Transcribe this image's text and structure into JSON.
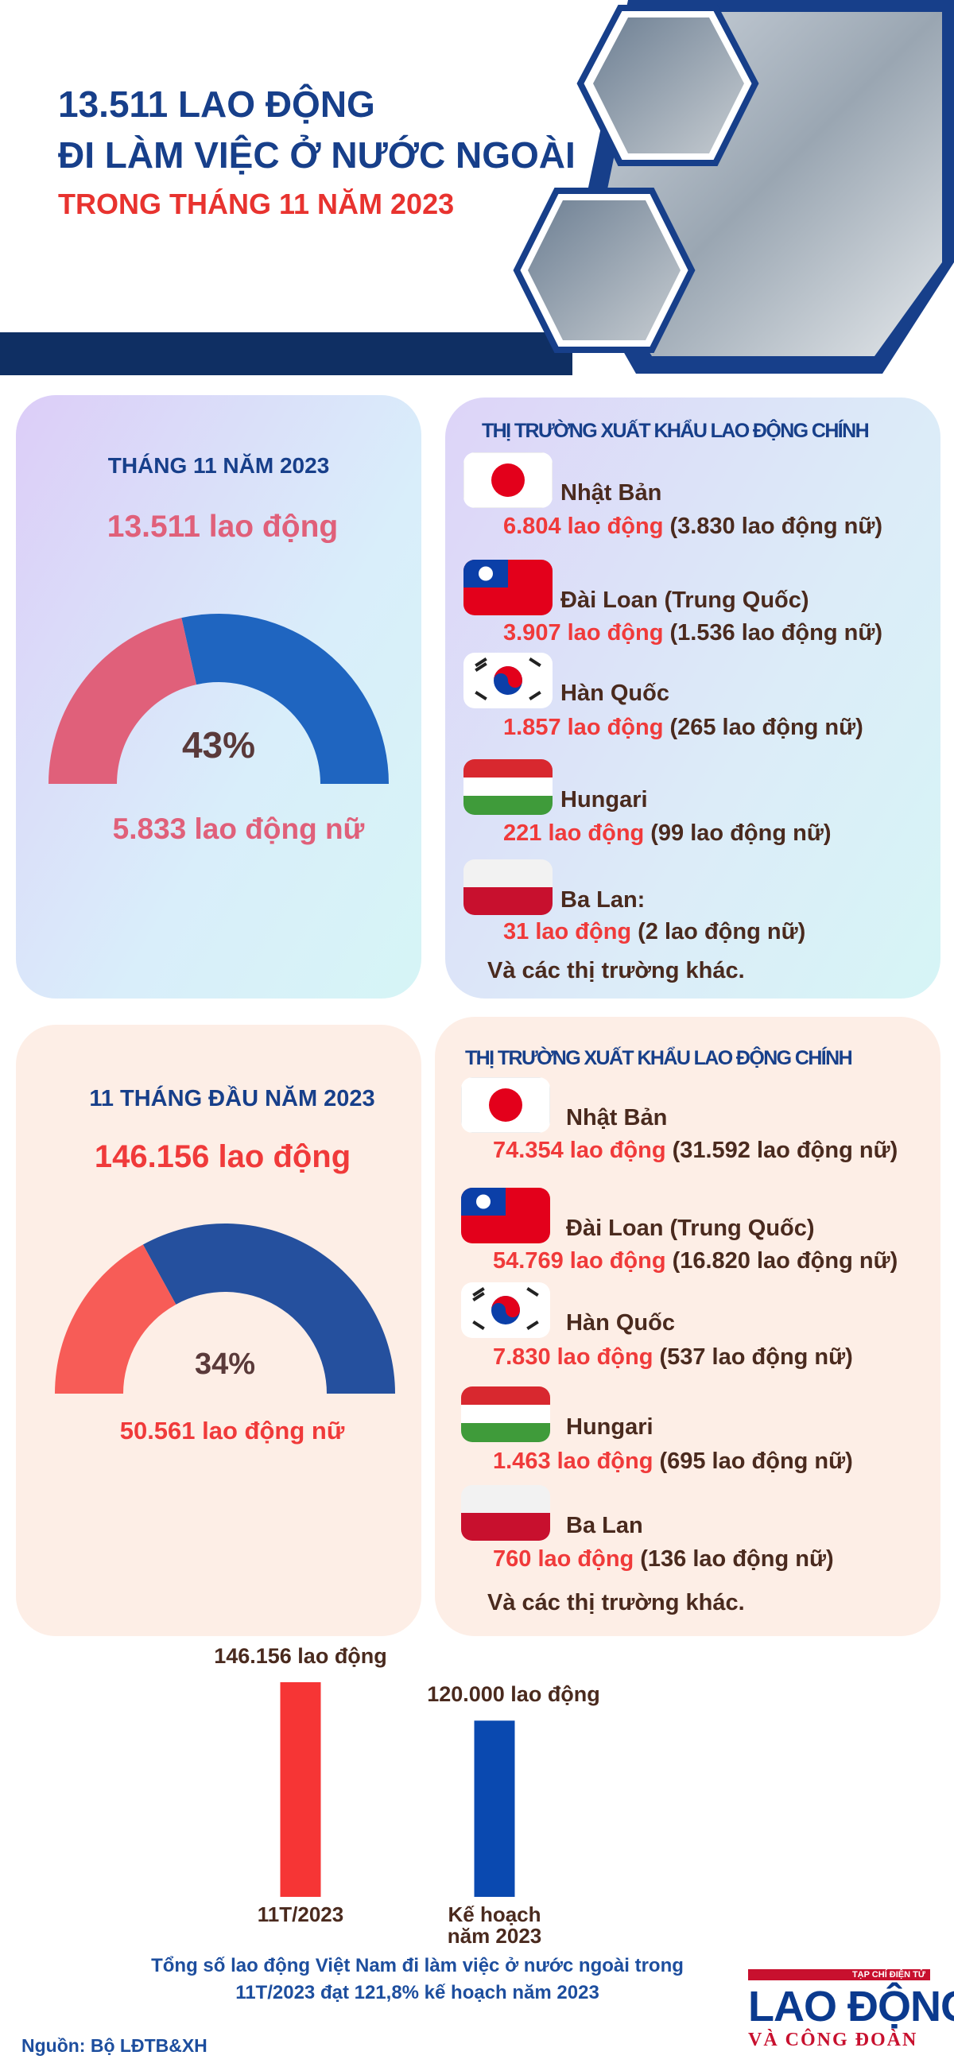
{
  "header": {
    "title_line1": "13.511 LAO ĐỘNG",
    "title_line2": "ĐI LÀM VIỆC Ở NƯỚC NGOÀI",
    "subtitle": "TRONG THÁNG 11 NĂM 2023"
  },
  "panels": [
    {
      "period": "THÁNG 11 NĂM 2023",
      "total": "13.511 lao động",
      "female": "5.833 lao động nữ",
      "markets_title": "THỊ TRƯỜNG XUẤT KHẨU LAO ĐỘNG CHÍNH",
      "markets": [
        {
          "country": "Nhật Bản",
          "workers": "6.804 lao động",
          "female": "(3.830 lao động nữ)"
        },
        {
          "country": "Đài Loan (Trung Quốc)",
          "workers": "3.907 lao động",
          "female": "(1.536 lao động nữ)"
        },
        {
          "country": "Hàn Quốc",
          "workers": "1.857 lao động",
          "female": "(265 lao động nữ)"
        },
        {
          "country": "Hungari",
          "workers": "221 lao động",
          "female": "(99 lao động nữ)"
        },
        {
          "country": "Ba Lan:",
          "workers": "31 lao động",
          "female": "(2 lao động nữ)"
        }
      ],
      "others": "Và các thị trường khác."
    },
    {
      "period": "11 THÁNG ĐẦU NĂM 2023",
      "total": "146.156 lao động",
      "female": "50.561 lao động nữ",
      "markets_title": "THỊ TRƯỜNG XUẤT KHẨU LAO ĐỘNG CHÍNH",
      "markets": [
        {
          "country": "Nhật Bản",
          "workers": "74.354 lao động",
          "female": "(31.592 lao động nữ)"
        },
        {
          "country": "Đài Loan (Trung Quốc)",
          "workers": "54.769 lao động",
          "female": "(16.820 lao động nữ)"
        },
        {
          "country": "Hàn Quốc",
          "workers": "7.830 lao động",
          "female": "(537 lao động nữ)"
        },
        {
          "country": "Hungari",
          "workers": "1.463 lao động",
          "female": "(695 lao động nữ)"
        },
        {
          "country": "Ba Lan",
          "workers": "760 lao động",
          "female": "(136 lao động nữ)"
        }
      ],
      "others": "Và các thị trường khác."
    }
  ],
  "chart_data": [
    {
      "type": "gauge",
      "values": [
        43
      ],
      "value_labels": [
        "43%"
      ],
      "ylim": [
        0,
        100
      ],
      "color": "#e0607a",
      "rest_color": "#1f65c0"
    },
    {
      "type": "gauge",
      "values": [
        34
      ],
      "value_labels": [
        "34%"
      ],
      "ylim": [
        0,
        100
      ],
      "color": "#f75c57",
      "rest_color": "#25509e"
    },
    {
      "type": "bar",
      "title": "Tổng số lao động Việt Nam đi làm việc ở nước ngoài trong 11T/2023 đạt 121,8% kế hoạch năm 2023",
      "categories": [
        "11T/2023",
        "Kế hoạch năm 2023"
      ],
      "values": [
        146156,
        120000
      ],
      "value_labels": [
        "146.156 lao động",
        "120.000 lao động"
      ],
      "colors": [
        "#f63535",
        "#0a49b0"
      ]
    }
  ],
  "source": "Nguồn: Bộ LĐTB&XH",
  "logo": {
    "tagline": "TẠP CHÍ ĐIỆN TỬ",
    "name": "LAO ĐỘNG",
    "subname": "VÀ CÔNG ĐOÀN"
  }
}
